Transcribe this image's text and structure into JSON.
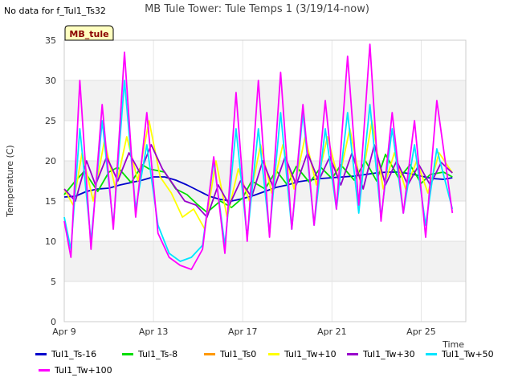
{
  "header": {
    "no_data": "No data for f_Tul1_Ts32",
    "title": "MB Tule Tower: Tule Temps 1 (3/19/14-now)"
  },
  "chart_data": {
    "type": "line",
    "title": "MB Tule Tower: Tule Temps 1 (3/19/14-now)",
    "xlabel": "Time",
    "ylabel": "Temperature (C)",
    "station_label": "MB_tule",
    "xlim": [
      0,
      18
    ],
    "ylim": [
      0,
      35
    ],
    "yticks": [
      0,
      5,
      10,
      15,
      20,
      25,
      30,
      35
    ],
    "xticks": [
      {
        "day": 0,
        "label": "Apr 9"
      },
      {
        "day": 4,
        "label": "Apr 13"
      },
      {
        "day": 8,
        "label": "Apr 17"
      },
      {
        "day": 12,
        "label": "Apr 21"
      },
      {
        "day": 16,
        "label": "Apr 25"
      }
    ],
    "grid": true,
    "series": [
      {
        "name": "Tul1_Ts-16",
        "color": "#0000cc",
        "x": [
          0,
          0.5,
          1,
          1.5,
          2,
          2.5,
          3,
          3.5,
          4,
          4.5,
          5,
          5.5,
          6,
          6.5,
          7,
          7.5,
          8,
          8.5,
          9,
          9.5,
          10,
          10.5,
          11,
          11.5,
          12,
          12.5,
          13,
          13.5,
          14,
          14.5,
          15,
          15.5,
          16,
          16.5,
          17,
          17.4
        ],
        "y": [
          15.5,
          15.6,
          16.2,
          16.5,
          16.6,
          17.0,
          17.3,
          17.6,
          18.0,
          18.0,
          17.6,
          17.0,
          16.3,
          15.6,
          15.2,
          15.0,
          15.3,
          15.7,
          16.2,
          16.7,
          17.0,
          17.4,
          17.6,
          17.8,
          17.9,
          18.0,
          18.1,
          18.3,
          18.5,
          18.6,
          18.6,
          18.4,
          18.1,
          17.8,
          17.7,
          17.9
        ]
      },
      {
        "name": "Tul1_Ts-8",
        "color": "#00dd00",
        "x": [
          0,
          0.5,
          0.9,
          1.5,
          2,
          2.4,
          3,
          3.5,
          3.8,
          4.5,
          5,
          5.5,
          6,
          6.4,
          7,
          7.5,
          8,
          8.4,
          9,
          9.5,
          10,
          10.4,
          11,
          11.5,
          12,
          12.4,
          13,
          13.5,
          14,
          14.4,
          15,
          15.5,
          16,
          16.4,
          17,
          17.4
        ],
        "y": [
          15.8,
          17.5,
          18.7,
          16.2,
          18.6,
          19.2,
          17.3,
          19.5,
          19.0,
          18.6,
          16.5,
          15.8,
          14.5,
          13.6,
          15.0,
          14.2,
          15.4,
          17.5,
          16.5,
          18.8,
          17.0,
          19.3,
          17.3,
          19.2,
          17.8,
          19.5,
          17.6,
          20.0,
          17.5,
          20.8,
          17.8,
          19.5,
          17.2,
          18.3,
          18.6,
          18.0
        ]
      },
      {
        "name": "Tul1_Ts0",
        "color": "#ff9900",
        "x": [],
        "y": []
      },
      {
        "name": "Tul1_Tw+10",
        "color": "#ffff00",
        "x": [
          0,
          0.4,
          0.8,
          1.3,
          1.8,
          2.3,
          2.8,
          3.3,
          3.8,
          4.3,
          4.8,
          5.3,
          5.8,
          6.3,
          6.8,
          7.3,
          7.8,
          8.3,
          8.8,
          9.3,
          9.8,
          10.3,
          10.8,
          11.3,
          11.8,
          12.3,
          12.8,
          13.3,
          13.8,
          14.3,
          14.8,
          15.3,
          15.8,
          16.3,
          16.8,
          17.4
        ],
        "y": [
          16.5,
          14.5,
          21.0,
          15.0,
          22.5,
          16.5,
          23.0,
          17.5,
          25.0,
          18.0,
          16.0,
          13.0,
          14.0,
          11.5,
          20.0,
          13.0,
          19.0,
          15.0,
          22.0,
          16.0,
          22.0,
          16.5,
          23.0,
          17.0,
          23.0,
          17.5,
          24.0,
          17.0,
          25.0,
          16.5,
          21.0,
          16.5,
          20.0,
          16.0,
          21.0,
          18.5
        ]
      },
      {
        "name": "Tul1_Tw+30",
        "color": "#9900cc",
        "x": [
          0,
          0.5,
          1,
          1.4,
          1.9,
          2.4,
          2.9,
          3.4,
          3.9,
          4.4,
          4.9,
          5.4,
          5.9,
          6.4,
          6.9,
          7.4,
          7.9,
          8.4,
          8.9,
          9.4,
          9.9,
          10.4,
          10.9,
          11.4,
          11.9,
          12.4,
          12.9,
          13.4,
          13.9,
          14.4,
          14.9,
          15.4,
          15.9,
          16.4,
          16.9,
          17.4
        ],
        "y": [
          16.5,
          15.0,
          20.0,
          17.0,
          20.5,
          17.5,
          21.0,
          18.5,
          22.0,
          19.0,
          17.0,
          15.0,
          14.5,
          13.0,
          17.0,
          14.5,
          17.5,
          15.5,
          20.0,
          16.5,
          20.5,
          17.0,
          21.0,
          17.5,
          20.5,
          17.0,
          21.0,
          16.5,
          22.0,
          17.0,
          20.0,
          17.0,
          19.5,
          17.0,
          19.8,
          18.5
        ]
      },
      {
        "name": "Tul1_Tw+50",
        "color": "#00e5ff",
        "x": [
          0,
          0.3,
          0.7,
          1.2,
          1.7,
          2.2,
          2.7,
          3.2,
          3.7,
          4.2,
          4.7,
          5.2,
          5.7,
          6.2,
          6.7,
          7.2,
          7.7,
          8.2,
          8.7,
          9.2,
          9.7,
          10.2,
          10.7,
          11.2,
          11.7,
          12.2,
          12.7,
          13.2,
          13.7,
          14.2,
          14.7,
          15.2,
          15.7,
          16.2,
          16.7,
          17.4
        ],
        "y": [
          13.0,
          9.0,
          24.0,
          10.0,
          25.0,
          12.0,
          30.0,
          14.0,
          22.0,
          12.0,
          8.5,
          7.5,
          8.0,
          9.5,
          20.0,
          9.5,
          24.0,
          10.5,
          24.0,
          11.0,
          26.0,
          11.5,
          26.0,
          12.0,
          24.0,
          14.0,
          26.0,
          13.5,
          27.0,
          13.0,
          24.0,
          13.5,
          22.0,
          12.0,
          21.5,
          14.0
        ]
      },
      {
        "name": "Tul1_Tw+100",
        "color": "#ff00ff",
        "x": [
          0,
          0.3,
          0.7,
          1.2,
          1.7,
          2.2,
          2.7,
          3.2,
          3.7,
          4.2,
          4.7,
          5.2,
          5.7,
          6.2,
          6.7,
          7.2,
          7.7,
          8.2,
          8.7,
          9.2,
          9.7,
          10.2,
          10.7,
          11.2,
          11.7,
          12.2,
          12.7,
          13.2,
          13.7,
          14.2,
          14.7,
          15.2,
          15.7,
          16.2,
          16.7,
          17.4
        ],
        "y": [
          12.5,
          8.0,
          30.0,
          9.0,
          27.0,
          11.5,
          33.5,
          13.0,
          26.0,
          11.0,
          8.0,
          7.0,
          6.5,
          9.0,
          20.5,
          8.5,
          28.5,
          10.0,
          30.0,
          10.5,
          31.0,
          11.5,
          27.0,
          12.0,
          27.5,
          14.0,
          33.0,
          14.5,
          34.5,
          12.5,
          26.0,
          13.5,
          25.0,
          10.5,
          27.5,
          13.5
        ]
      }
    ]
  }
}
